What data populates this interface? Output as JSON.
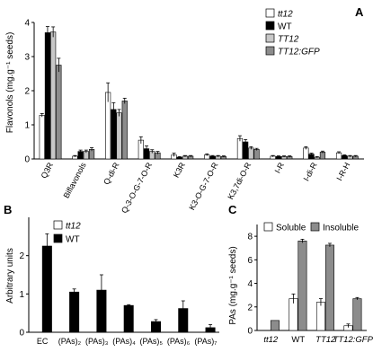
{
  "panel_a": {
    "letter": "A",
    "ylabel": "Flavonols (mg.g⁻¹ seeds)",
    "legend": [
      {
        "label": "tt12",
        "color": "#ffffff",
        "italic": true
      },
      {
        "label": "WT",
        "color": "#000000",
        "italic": false
      },
      {
        "label": "TT12",
        "color": "#c8c8c8",
        "italic": true
      },
      {
        "label": "TT12:GFP",
        "color": "#8c8c8c",
        "italic": true
      }
    ]
  },
  "panel_b": {
    "letter": "B",
    "ylabel": "Arbitrary units",
    "legend": [
      {
        "label": "tt12",
        "color": "#ffffff",
        "italic": true
      },
      {
        "label": "WT",
        "color": "#000000",
        "italic": false
      }
    ]
  },
  "panel_c": {
    "letter": "C",
    "ylabel": "PAs (mg.g⁻¹ seeds)",
    "legend": [
      {
        "label": "Soluble",
        "color": "#ffffff",
        "italic": false
      },
      {
        "label": "Insoluble",
        "color": "#8c8c8c",
        "italic": false
      }
    ]
  },
  "chart_data": [
    {
      "type": "bar",
      "categories": [
        "Q3R",
        "Biflavonols",
        "Q-di-R",
        "Q-3-O-G-7-O-R",
        "K3R",
        "K3-O-G-7-O-R",
        "K3,7di-O-R",
        "I-R",
        "I-di-R",
        "I-R-H"
      ],
      "series": [
        {
          "name": "tt12",
          "values": [
            1.28,
            0.08,
            1.95,
            0.55,
            0.12,
            0.12,
            0.6,
            0.08,
            0.32,
            0.18
          ],
          "errors": [
            0.05,
            0.02,
            0.28,
            0.1,
            0.05,
            0.03,
            0.08,
            0.02,
            0.04,
            0.03
          ]
        },
        {
          "name": "WT",
          "values": [
            3.7,
            0.22,
            1.45,
            0.3,
            0.05,
            0.08,
            0.5,
            0.07,
            0.14,
            0.1
          ],
          "errors": [
            0.18,
            0.04,
            0.2,
            0.08,
            0.02,
            0.02,
            0.07,
            0.02,
            0.03,
            0.02
          ]
        },
        {
          "name": "TT12",
          "values": [
            3.72,
            0.22,
            1.35,
            0.22,
            0.08,
            0.08,
            0.32,
            0.07,
            0.05,
            0.08
          ],
          "errors": [
            0.15,
            0.04,
            0.1,
            0.05,
            0.02,
            0.02,
            0.04,
            0.02,
            0.02,
            0.02
          ]
        },
        {
          "name": "TT12:GFP",
          "values": [
            2.75,
            0.28,
            1.7,
            0.18,
            0.08,
            0.07,
            0.28,
            0.07,
            0.2,
            0.08
          ],
          "errors": [
            0.2,
            0.05,
            0.08,
            0.04,
            0.02,
            0.02,
            0.03,
            0.02,
            0.03,
            0.02
          ]
        }
      ],
      "ylabel": "Flavonols (mg.g⁻¹ seeds)",
      "ylim": [
        0,
        4
      ],
      "yticks": [
        0,
        1,
        2,
        3,
        4
      ],
      "legend_position": "top-right"
    },
    {
      "type": "bar",
      "categories": [
        "EC",
        "(PAs)₂",
        "(PAs)₃",
        "(PAs)₄",
        "(PAs)₅",
        "(PAs)₆",
        "(PAs)₇"
      ],
      "series": [
        {
          "name": "tt12",
          "values": [
            0,
            0,
            0,
            0,
            0,
            0,
            0
          ],
          "errors": [
            0,
            0,
            0,
            0,
            0,
            0,
            0
          ]
        },
        {
          "name": "WT",
          "values": [
            2.25,
            1.05,
            1.1,
            0.7,
            0.28,
            0.62,
            0.12
          ],
          "errors": [
            0.32,
            0.08,
            0.4,
            0.02,
            0.05,
            0.2,
            0.08
          ]
        }
      ],
      "ylabel": "Arbitrary units",
      "ylim": [
        0,
        3
      ],
      "yticks": [
        0,
        1,
        2
      ],
      "legend_position": "top-right"
    },
    {
      "type": "bar",
      "categories": [
        "tt12",
        "WT",
        "TT12",
        "TT12:GFP"
      ],
      "series": [
        {
          "name": "Soluble",
          "values": [
            0,
            2.7,
            2.4,
            0.4
          ],
          "errors": [
            0,
            0.4,
            0.3,
            0.15
          ]
        },
        {
          "name": "Insoluble",
          "values": [
            0.85,
            7.6,
            7.25,
            2.7
          ],
          "errors": [
            0,
            0.15,
            0.15,
            0.1
          ]
        }
      ],
      "ylabel": "PAs (mg.g⁻¹ seeds)",
      "ylim": [
        0,
        9
      ],
      "yticks": [
        0,
        2,
        4,
        6,
        8
      ],
      "legend_position": "top"
    }
  ]
}
